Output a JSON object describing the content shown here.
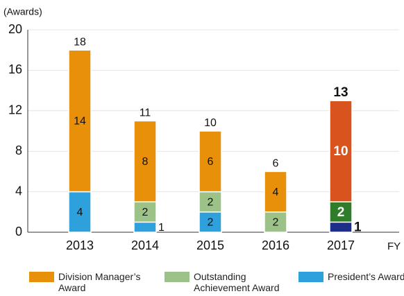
{
  "chart_data": {
    "type": "stacked_bar",
    "y_label": "(Awards)",
    "x_label": "FY",
    "categories": [
      "2013",
      "2014",
      "2015",
      "2016",
      "2017"
    ],
    "series": [
      {
        "name": "President’s Award",
        "color": "#2ea0dc",
        "highlight_color": "#1c2d8a",
        "values": [
          4,
          1,
          2,
          0,
          1
        ]
      },
      {
        "name": "Outstanding Achievement Award",
        "color": "#9dc288",
        "highlight_color": "#2f7d2a",
        "values": [
          0,
          2,
          2,
          2,
          2
        ]
      },
      {
        "name": "Division Manager’s Award",
        "color": "#e8900a",
        "highlight_color": "#d9531e",
        "values": [
          14,
          8,
          6,
          4,
          10
        ]
      }
    ],
    "totals": [
      18,
      11,
      10,
      6,
      13
    ],
    "highlight_category": "2017",
    "ylim": [
      0,
      20
    ],
    "yticks": [
      0,
      4,
      8,
      12,
      16,
      20
    ],
    "grid": true
  }
}
